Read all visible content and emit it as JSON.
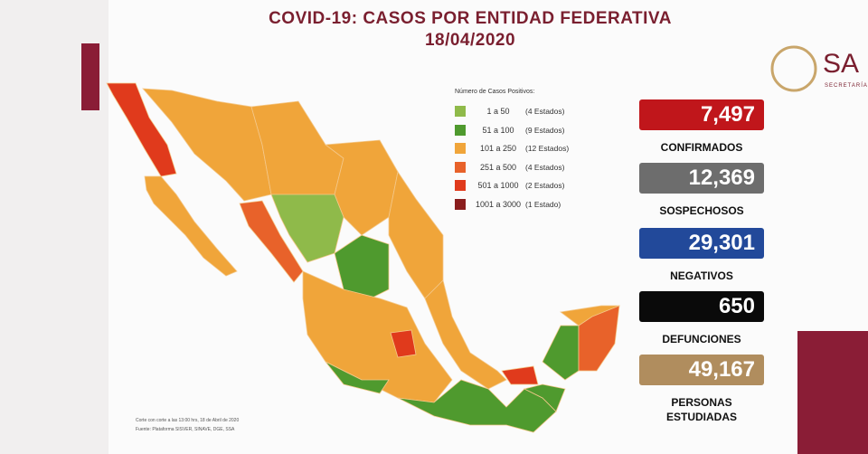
{
  "header": {
    "title": "COVID-19: CASOS POR ENTIDAD FEDERATIVA",
    "date": "18/04/2020"
  },
  "legend": {
    "title": "Número de Casos Positivos:",
    "items": [
      {
        "range": "1 a 50",
        "count": "(4 Estados)",
        "color": "#8fba4a"
      },
      {
        "range": "51 a 100",
        "count": "(9 Estados)",
        "color": "#4f9a2e"
      },
      {
        "range": "101 a 250",
        "count": "(12 Estados)",
        "color": "#f0a53a"
      },
      {
        "range": "251 a 500",
        "count": "(4 Estados)",
        "color": "#e8622a"
      },
      {
        "range": "501 a 1000",
        "count": "(2 Estados)",
        "color": "#e03a1c"
      },
      {
        "range": "1001 a 3000",
        "count": "(1 Estado)",
        "color": "#8a1d1d"
      }
    ]
  },
  "stats": [
    {
      "value": "7,497",
      "label": "CONFIRMADOS",
      "color": "#c0161b"
    },
    {
      "value": "12,369",
      "label": "SOSPECHOSOS",
      "color": "#6d6d6d"
    },
    {
      "value": "29,301",
      "label": "NEGATIVOS",
      "color": "#22499a"
    },
    {
      "value": "650",
      "label": "DEFUNCIONES",
      "color": "#0a0a0a"
    },
    {
      "value": "49,167",
      "label": "PERSONAS ESTUDIADAS",
      "color": "#b08d5e"
    }
  ],
  "notes": [
    "Corte con corte a las 13:00 hrs, 18 de Abril de 2020",
    "Fuente: Plataforma SISVER, SINAVE, DGE, SSA"
  ],
  "logo": {
    "text": "SA",
    "subtext": "SECRETARÍA"
  }
}
